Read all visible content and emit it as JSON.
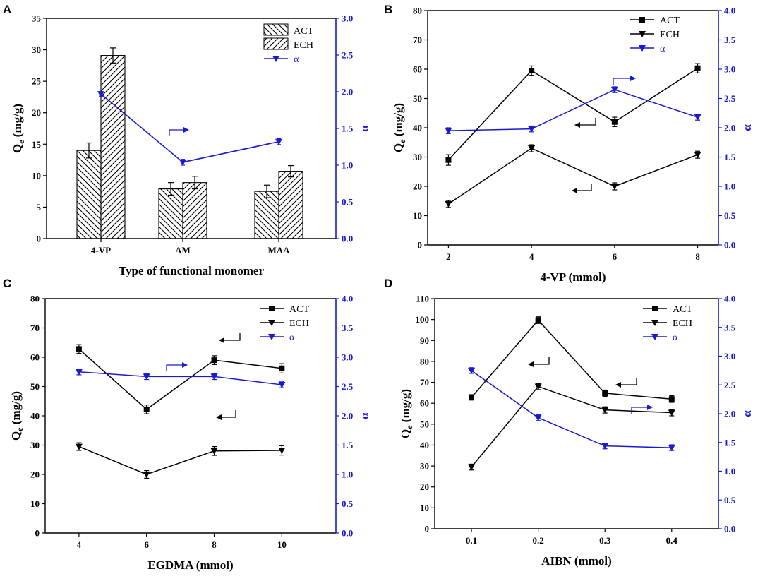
{
  "panels": {
    "A": {
      "letter": "A"
    },
    "B": {
      "letter": "B"
    },
    "C": {
      "letter": "C"
    },
    "D": {
      "letter": "D"
    }
  },
  "colors": {
    "primary": "#000000",
    "secondary": "#1a1ad4"
  },
  "chart_data": [
    {
      "panel": "A",
      "type": "bar",
      "categories": [
        "4-VP",
        "AM",
        "MAA"
      ],
      "series": [
        {
          "name": "ACT",
          "values": [
            14.0,
            7.9,
            7.5
          ],
          "errors": [
            1.2,
            1.0,
            1.0
          ],
          "style": "hatch-back"
        },
        {
          "name": "ECH",
          "values": [
            29.1,
            8.9,
            10.7
          ],
          "errors": [
            1.2,
            1.0,
            0.9
          ],
          "style": "hatch-fwd"
        },
        {
          "name": "α",
          "axis": "right",
          "type": "line",
          "values": [
            1.97,
            1.04,
            1.32
          ],
          "errors": [
            0.03,
            0.04,
            0.04
          ]
        }
      ],
      "xlabel": "Type of functional monomer",
      "ylabel": "Qe (mg/g)",
      "y2label": "α",
      "ylim": [
        0,
        35
      ],
      "yticks": [
        0,
        5,
        10,
        15,
        20,
        25,
        30,
        35
      ],
      "y2lim": [
        0,
        3.0
      ],
      "y2ticks": [
        "0.0",
        "0.5",
        "1.0",
        "1.5",
        "2.0",
        "2.5",
        "3.0"
      ],
      "annotations": [
        {
          "text": "→",
          "points_to": "α"
        }
      ]
    },
    {
      "panel": "B",
      "type": "line",
      "x": [
        2,
        4,
        6,
        8
      ],
      "series": [
        {
          "name": "ACT",
          "marker": "square",
          "values": [
            29,
            59.5,
            42,
            60.3
          ],
          "errors": [
            1.8,
            1.6,
            1.6,
            1.6
          ]
        },
        {
          "name": "ECH",
          "marker": "triangle-down",
          "values": [
            14,
            33,
            20,
            30.8
          ],
          "errors": [
            1.2,
            1.2,
            1.2,
            1.2
          ]
        },
        {
          "name": "α",
          "axis": "right",
          "marker": "triangle-down",
          "values": [
            1.95,
            1.98,
            2.65,
            2.18
          ],
          "errors": [
            0.05,
            0.05,
            0.05,
            0.05
          ]
        }
      ],
      "xlabel": "4-VP (mmol)",
      "ylabel": "Qe (mg/g)",
      "y2label": "α",
      "xlim": [
        1.5,
        8.5
      ],
      "xticks": [
        "2",
        "4",
        "6",
        "8"
      ],
      "ylim": [
        0,
        80
      ],
      "yticks": [
        0,
        10,
        20,
        30,
        40,
        50,
        60,
        70,
        80
      ],
      "y2lim": [
        0,
        4.0
      ],
      "y2ticks": [
        "0.0",
        "0.5",
        "1.0",
        "1.5",
        "2.0",
        "2.5",
        "3.0",
        "3.5",
        "4.0"
      ]
    },
    {
      "panel": "C",
      "type": "line",
      "x": [
        4,
        6,
        8,
        10
      ],
      "series": [
        {
          "name": "ACT",
          "marker": "square",
          "values": [
            62.8,
            42.2,
            59,
            56.2
          ],
          "errors": [
            1.5,
            1.5,
            1.5,
            1.6
          ]
        },
        {
          "name": "ECH",
          "marker": "triangle-down",
          "values": [
            29.5,
            20,
            28,
            28.2
          ],
          "errors": [
            1.3,
            1.3,
            1.5,
            1.6
          ]
        },
        {
          "name": "α",
          "axis": "right",
          "marker": "triangle-down",
          "values": [
            2.75,
            2.67,
            2.67,
            2.53
          ],
          "errors": [
            0.05,
            0.05,
            0.05,
            0.05
          ]
        }
      ],
      "xlabel": "EGDMA (mmol)",
      "ylabel": "Qe (mg/g)",
      "y2label": "α",
      "xlim": [
        3,
        11.6
      ],
      "xticks": [
        "4",
        "6",
        "8",
        "10"
      ],
      "ylim": [
        0,
        80
      ],
      "yticks": [
        0,
        10,
        20,
        30,
        40,
        50,
        60,
        70,
        80
      ],
      "y2lim": [
        0,
        4.0
      ],
      "y2ticks": [
        "0.0",
        "0.5",
        "1.0",
        "1.5",
        "2.0",
        "2.5",
        "3.0",
        "3.5",
        "4.0"
      ]
    },
    {
      "panel": "D",
      "type": "line",
      "x": [
        0.1,
        0.2,
        0.3,
        0.4
      ],
      "series": [
        {
          "name": "ACT",
          "marker": "square",
          "values": [
            62.8,
            99.7,
            64.8,
            62
          ],
          "errors": [
            1.3,
            1.6,
            1.5,
            1.6
          ]
        },
        {
          "name": "ECH",
          "marker": "triangle-down",
          "values": [
            29.5,
            68,
            56.8,
            55.5
          ],
          "errors": [
            1.4,
            1.5,
            1.5,
            1.5
          ]
        },
        {
          "name": "α",
          "axis": "right",
          "marker": "triangle-down",
          "values": [
            2.75,
            1.93,
            1.44,
            1.41
          ],
          "errors": [
            0.05,
            0.05,
            0.05,
            0.05
          ]
        }
      ],
      "xlabel": "AIBN (mmol)",
      "ylabel": "Qe (mg/g)",
      "y2label": "α",
      "xlim": [
        0.045,
        0.47
      ],
      "xticks": [
        "0.1",
        "0.2",
        "0.3",
        "0.4"
      ],
      "ylim": [
        0,
        110
      ],
      "yticks": [
        0,
        10,
        20,
        30,
        40,
        50,
        60,
        70,
        80,
        90,
        100,
        110
      ],
      "y2lim": [
        0,
        4.0
      ],
      "y2ticks": [
        "0.0",
        "0.5",
        "1.0",
        "1.5",
        "2.0",
        "2.5",
        "3.0",
        "3.5",
        "4.0"
      ]
    }
  ]
}
